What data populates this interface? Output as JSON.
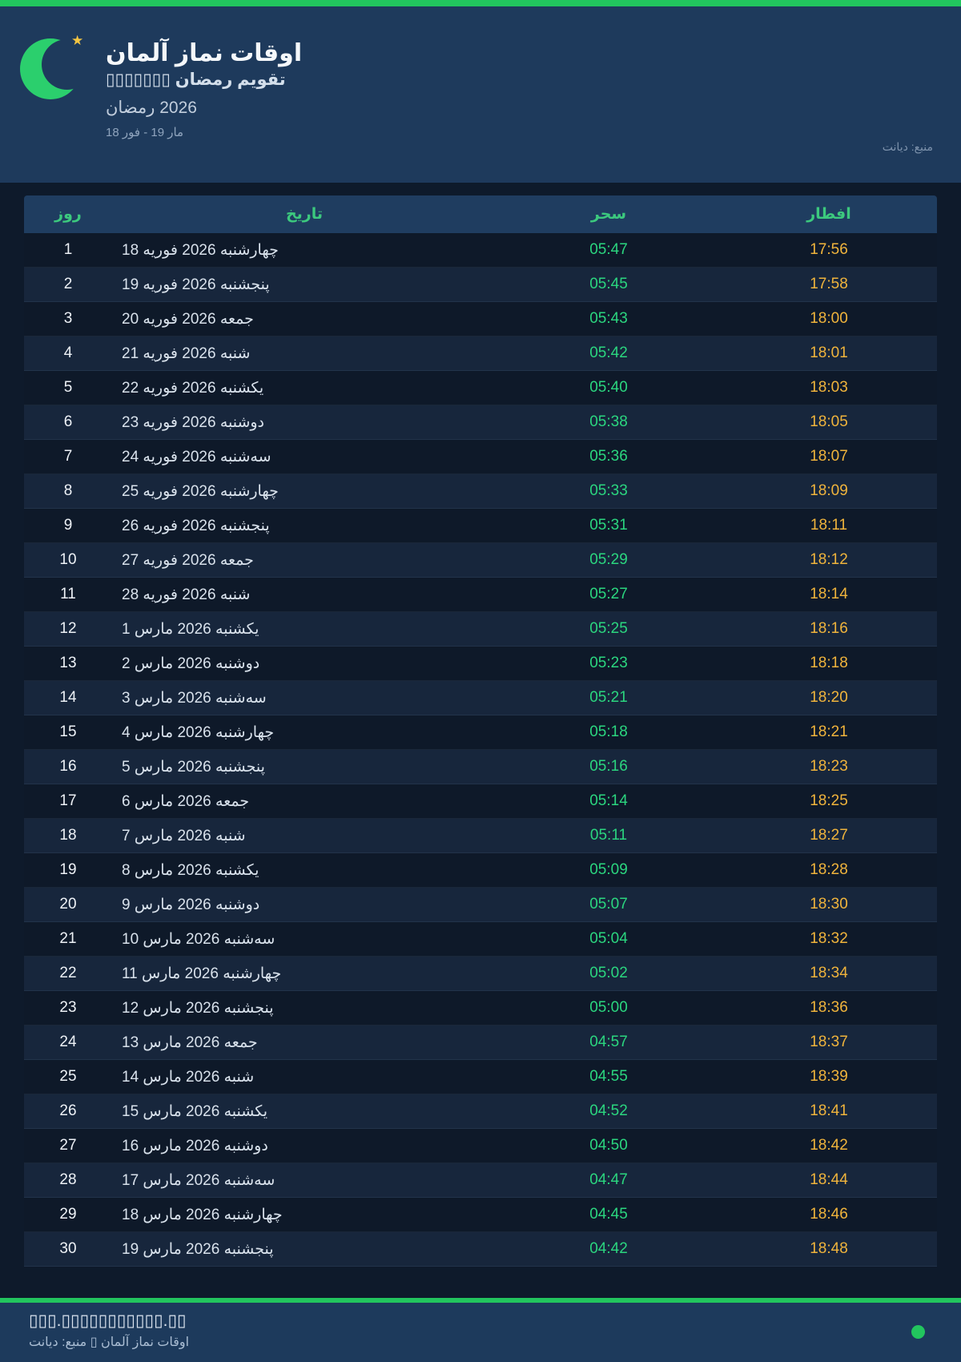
{
  "header": {
    "title": "اوقات نماز آلمان",
    "subtitle": "تقویم رمضان ▯▯▯▯▯▯▯",
    "ramadan_year": "رمضان‎ 2026",
    "date_range": "18 فور‎ - 19 مار",
    "source": "منبع: دیانت",
    "accent_color": "#22c55e",
    "moon_icon": "crescent-moon",
    "star_icon": "star"
  },
  "table": {
    "columns": {
      "day": "روز",
      "date": "تاریخ",
      "suhoor": "سحر",
      "iftar": "افطار"
    },
    "header_text_color": "#3cc97e",
    "suhoor_color": "#2bd67f",
    "iftar_color": "#f0b43c",
    "rows": [
      {
        "day": "1",
        "date": "18 فوریه‎ 2026 چهارشنبه",
        "suhoor": "05:47",
        "iftar": "17:56"
      },
      {
        "day": "2",
        "date": "19 فوریه‎ 2026 پنجشنبه",
        "suhoor": "05:45",
        "iftar": "17:58"
      },
      {
        "day": "3",
        "date": "20 فوریه‎ 2026 جمعه",
        "suhoor": "05:43",
        "iftar": "18:00"
      },
      {
        "day": "4",
        "date": "21 فوریه‎ 2026 شنبه",
        "suhoor": "05:42",
        "iftar": "18:01"
      },
      {
        "day": "5",
        "date": "22 فوریه‎ 2026 یکشنبه",
        "suhoor": "05:40",
        "iftar": "18:03"
      },
      {
        "day": "6",
        "date": "23 فوریه‎ 2026 دوشنبه",
        "suhoor": "05:38",
        "iftar": "18:05"
      },
      {
        "day": "7",
        "date": "24 فوریه‎ 2026 سه‌شنبه",
        "suhoor": "05:36",
        "iftar": "18:07"
      },
      {
        "day": "8",
        "date": "25 فوریه‎ 2026 چهارشنبه",
        "suhoor": "05:33",
        "iftar": "18:09"
      },
      {
        "day": "9",
        "date": "26 فوریه‎ 2026 پنجشنبه",
        "suhoor": "05:31",
        "iftar": "18:11"
      },
      {
        "day": "10",
        "date": "27 فوریه‎ 2026 جمعه",
        "suhoor": "05:29",
        "iftar": "18:12"
      },
      {
        "day": "11",
        "date": "28 فوریه‎ 2026 شنبه",
        "suhoor": "05:27",
        "iftar": "18:14"
      },
      {
        "day": "12",
        "date": "1 مارس‎ 2026 یکشنبه",
        "suhoor": "05:25",
        "iftar": "18:16"
      },
      {
        "day": "13",
        "date": "2 مارس‎ 2026 دوشنبه",
        "suhoor": "05:23",
        "iftar": "18:18"
      },
      {
        "day": "14",
        "date": "3 مارس‎ 2026 سه‌شنبه",
        "suhoor": "05:21",
        "iftar": "18:20"
      },
      {
        "day": "15",
        "date": "4 مارس‎ 2026 چهارشنبه",
        "suhoor": "05:18",
        "iftar": "18:21"
      },
      {
        "day": "16",
        "date": "5 مارس‎ 2026 پنجشنبه",
        "suhoor": "05:16",
        "iftar": "18:23"
      },
      {
        "day": "17",
        "date": "6 مارس‎ 2026 جمعه",
        "suhoor": "05:14",
        "iftar": "18:25"
      },
      {
        "day": "18",
        "date": "7 مارس‎ 2026 شنبه",
        "suhoor": "05:11",
        "iftar": "18:27"
      },
      {
        "day": "19",
        "date": "8 مارس‎ 2026 یکشنبه",
        "suhoor": "05:09",
        "iftar": "18:28"
      },
      {
        "day": "20",
        "date": "9 مارس‎ 2026 دوشنبه",
        "suhoor": "05:07",
        "iftar": "18:30"
      },
      {
        "day": "21",
        "date": "10 مارس‎ 2026 سه‌شنبه",
        "suhoor": "05:04",
        "iftar": "18:32"
      },
      {
        "day": "22",
        "date": "11 مارس‎ 2026 چهارشنبه",
        "suhoor": "05:02",
        "iftar": "18:34"
      },
      {
        "day": "23",
        "date": "12 مارس‎ 2026 پنجشنبه",
        "suhoor": "05:00",
        "iftar": "18:36"
      },
      {
        "day": "24",
        "date": "13 مارس‎ 2026 جمعه",
        "suhoor": "04:57",
        "iftar": "18:37"
      },
      {
        "day": "25",
        "date": "14 مارس‎ 2026 شنبه",
        "suhoor": "04:55",
        "iftar": "18:39"
      },
      {
        "day": "26",
        "date": "15 مارس‎ 2026 یکشنبه",
        "suhoor": "04:52",
        "iftar": "18:41"
      },
      {
        "day": "27",
        "date": "16 مارس‎ 2026 دوشنبه",
        "suhoor": "04:50",
        "iftar": "18:42"
      },
      {
        "day": "28",
        "date": "17 مارس‎ 2026 سه‌شنبه",
        "suhoor": "04:47",
        "iftar": "18:44"
      },
      {
        "day": "29",
        "date": "18 مارس‎ 2026 چهارشنبه",
        "suhoor": "04:45",
        "iftar": "18:46"
      },
      {
        "day": "30",
        "date": "19 مارس‎ 2026 پنجشنبه",
        "suhoor": "04:42",
        "iftar": "18:48"
      }
    ]
  },
  "footer": {
    "url_masked": "▯▯▯.▯▯▯▯▯▯▯▯▯▯▯.▯▯",
    "credit": "اوقات نماز آلمان ▯ منبع: دیانت",
    "dot_color": "#22c55e"
  }
}
